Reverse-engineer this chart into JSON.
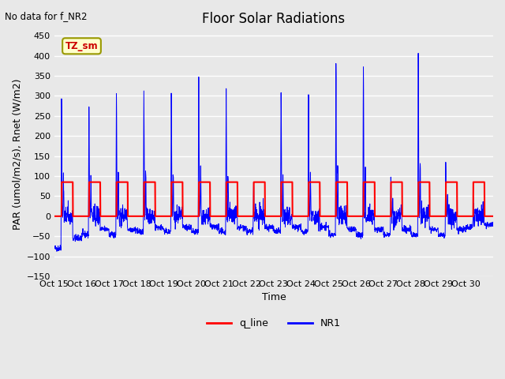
{
  "title": "Floor Solar Radiations",
  "subtitle": "No data for f_NR2",
  "xlabel": "Time",
  "ylabel": "PAR (umol/m2/s), Rnet (W/m2)",
  "ylim": [
    -150,
    460
  ],
  "yticks": [
    -150,
    -100,
    -50,
    0,
    50,
    100,
    150,
    200,
    250,
    300,
    350,
    400,
    450
  ],
  "xtick_labels": [
    "Oct 15",
    "Oct 16",
    "Oct 17",
    "Oct 18",
    "Oct 19",
    "Oct 20",
    "Oct 21",
    "Oct 22",
    "Oct 23",
    "Oct 24",
    "Oct 25",
    "Oct 26",
    "Oct 27",
    "Oct 28",
    "Oct 29",
    "Oct 30"
  ],
  "bg_color": "#e8e8e8",
  "plot_bg_color": "#e8e8e8",
  "grid_color": "white",
  "q_line_color": "#ff0000",
  "nr1_color": "#0000ff",
  "legend_label_q": "q_line",
  "legend_label_nr1": "NR1",
  "annotation_text": "TZ_sm",
  "annotation_box_color": "#ffffcc",
  "annotation_box_edge": "#999900",
  "n_days": 16,
  "pts_per_day": 144,
  "day_peak_nr1": [
    295,
    290,
    310,
    300,
    305,
    350,
    310,
    85,
    315,
    345,
    385,
    390,
    92,
    425,
    145,
    30
  ],
  "day_neg_nr1": [
    -100,
    -55,
    -55,
    -45,
    -45,
    -45,
    -45,
    -45,
    -45,
    -45,
    -55,
    -55,
    -55,
    -55,
    -55,
    -30
  ]
}
